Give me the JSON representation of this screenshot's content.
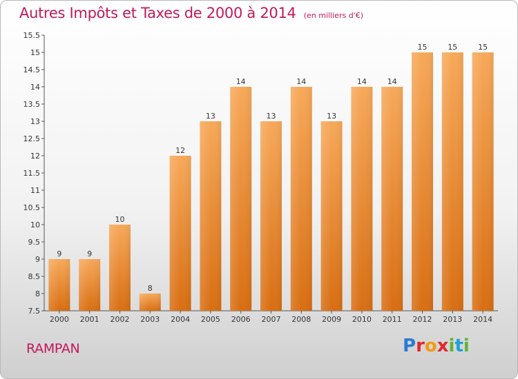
{
  "header": {
    "title": "Autres Impôts et Taxes de 2000 à 2014",
    "unit": "(en milliers d'€)"
  },
  "footer": {
    "commune": "RAMPAN",
    "logo": [
      "P",
      "r",
      "o",
      "x",
      "i",
      "t",
      "i"
    ]
  },
  "chart_data": {
    "type": "bar",
    "title": "Autres Impôts et Taxes de 2000 à 2014",
    "xlabel": "",
    "ylabel": "",
    "categories": [
      "2000",
      "2001",
      "2002",
      "2003",
      "2004",
      "2005",
      "2006",
      "2007",
      "2008",
      "2009",
      "2010",
      "2011",
      "2012",
      "2013",
      "2014"
    ],
    "values": [
      9,
      9,
      10,
      8,
      12,
      13,
      14,
      13,
      14,
      13,
      14,
      14,
      15,
      15,
      15
    ],
    "ylim": [
      7.5,
      15.5
    ],
    "yticks": [
      "7.5",
      "8",
      "8.5",
      "9",
      "9.5",
      "10",
      "10.5",
      "11",
      "11.5",
      "12",
      "12.5",
      "13",
      "13.5",
      "14",
      "14.5",
      "15",
      "15.5"
    ],
    "grid": false,
    "bar_color": "#f0922f"
  }
}
